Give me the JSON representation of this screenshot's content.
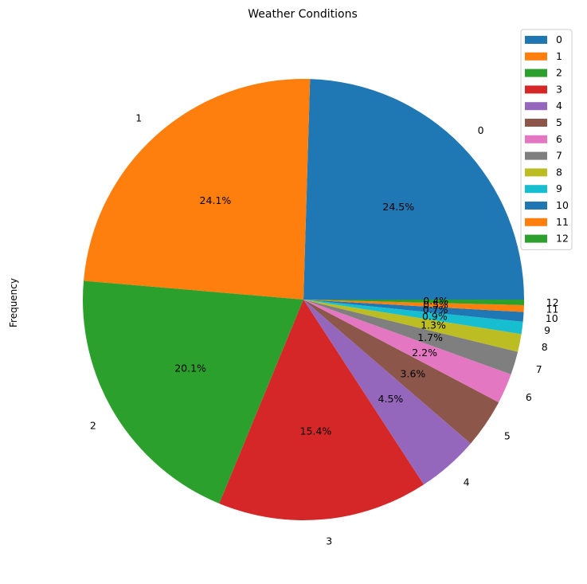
{
  "chart_data": {
    "type": "pie",
    "title": "Weather Conditions",
    "ylabel": "Frequency",
    "categories": [
      "0",
      "1",
      "2",
      "3",
      "4",
      "5",
      "6",
      "7",
      "8",
      "9",
      "10",
      "11",
      "12"
    ],
    "percent_labels": [
      "24.5%",
      "24.1%",
      "20.1%",
      "15.4%",
      "4.5%",
      "3.6%",
      "2.2%",
      "1.7%",
      "1.3%",
      "0.9%",
      "0.7%",
      "0.5%",
      "0.4%"
    ],
    "values": [
      24.5,
      24.1,
      20.1,
      15.4,
      4.5,
      3.6,
      2.2,
      1.7,
      1.3,
      0.9,
      0.7,
      0.5,
      0.4
    ],
    "colors": [
      "#1f77b4",
      "#ff7f0e",
      "#2ca02c",
      "#d62728",
      "#9467bd",
      "#8c564b",
      "#e377c2",
      "#7f7f7f",
      "#bcbd22",
      "#17becf",
      "#1f77b4",
      "#ff7f0e",
      "#2ca02c"
    ],
    "start_angle_deg": 0,
    "direction": "counterclockwise",
    "legend": {
      "placement": "top-right",
      "entries": [
        "0",
        "1",
        "2",
        "3",
        "4",
        "5",
        "6",
        "7",
        "8",
        "9",
        "10",
        "11",
        "12"
      ]
    }
  }
}
